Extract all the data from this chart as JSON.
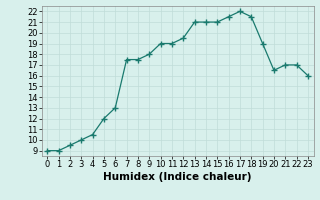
{
  "x": [
    0,
    1,
    2,
    3,
    4,
    5,
    6,
    7,
    8,
    9,
    10,
    11,
    12,
    13,
    14,
    15,
    16,
    17,
    18,
    19,
    20,
    21,
    22,
    23
  ],
  "y": [
    9.0,
    9.0,
    9.5,
    10.0,
    10.5,
    12.0,
    13.0,
    17.5,
    17.5,
    18.0,
    19.0,
    19.0,
    19.5,
    21.0,
    21.0,
    21.0,
    21.5,
    22.0,
    21.5,
    19.0,
    16.5,
    17.0,
    17.0,
    16.0
  ],
  "xlabel": "Humidex (Indice chaleur)",
  "line_color": "#1a7a6e",
  "marker_color": "#1a7a6e",
  "bg_color": "#d8f0ec",
  "grid_color": "#c0ddd8",
  "xlim": [
    -0.5,
    23.5
  ],
  "ylim": [
    8.5,
    22.5
  ],
  "yticks": [
    9,
    10,
    11,
    12,
    13,
    14,
    15,
    16,
    17,
    18,
    19,
    20,
    21,
    22
  ],
  "xtick_labels": [
    "0",
    "1",
    "2",
    "3",
    "4",
    "5",
    "6",
    "7",
    "8",
    "9",
    "10",
    "11",
    "12",
    "13",
    "14",
    "15",
    "16",
    "17",
    "18",
    "19",
    "20",
    "21",
    "22",
    "23"
  ],
  "xlabel_fontsize": 7.5,
  "tick_fontsize": 6.0
}
